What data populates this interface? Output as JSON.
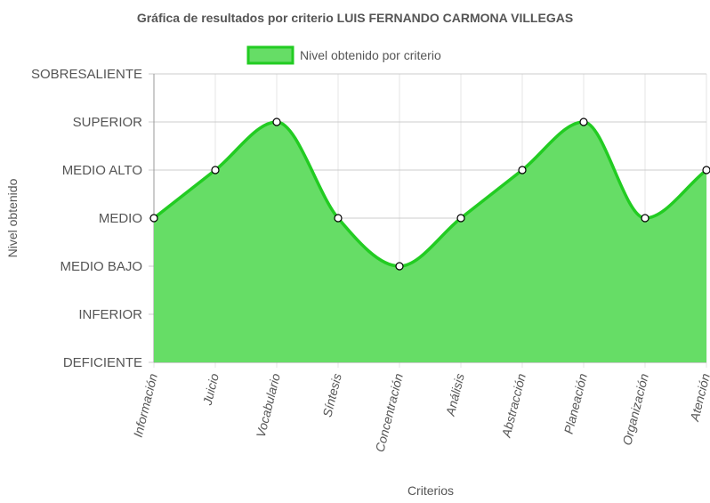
{
  "chart_data": {
    "type": "area",
    "title": "Gráfica de resultados por criterio LUIS FERNANDO CARMONA VILLEGAS",
    "xlabel": "Criterios",
    "ylabel": "Nivel obtenido",
    "categories": [
      "Información",
      "Juicio",
      "Vocabulario",
      "Síntesis",
      "Concentración",
      "Análisis",
      "Abstracción",
      "Planeación",
      "Organización",
      "Atención"
    ],
    "y_levels": [
      "DEFICIENTE",
      "INFERIOR",
      "MEDIO BAJO",
      "MEDIO",
      "MEDIO ALTO",
      "SUPERIOR",
      "SOBRESALIENTE"
    ],
    "series": [
      {
        "name": "Nivel obtenido por criterio",
        "values": [
          3,
          4,
          5,
          3,
          2,
          3,
          4,
          5,
          3,
          4
        ],
        "value_labels": [
          "MEDIO",
          "MEDIO ALTO",
          "SUPERIOR",
          "MEDIO",
          "MEDIO BAJO",
          "MEDIO",
          "MEDIO ALTO",
          "SUPERIOR",
          "MEDIO",
          "MEDIO ALTO"
        ]
      }
    ],
    "ylim": [
      0,
      6
    ],
    "grid": true,
    "legend": "top-center",
    "colors": {
      "fill": "#66dd66",
      "line": "#22cc22",
      "point_fill": "#ffffff",
      "point_stroke": "#000000"
    }
  }
}
